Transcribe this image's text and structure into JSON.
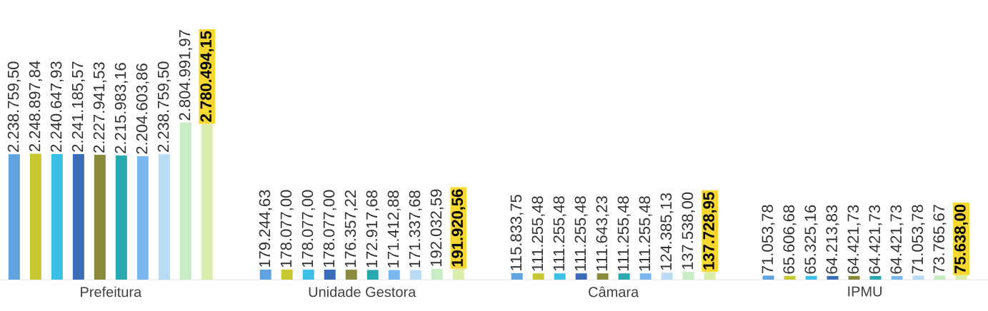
{
  "chart_data": {
    "type": "bar",
    "categories": [
      "Prefeitura",
      "Unidade Gestora",
      "Câmara",
      "IPMU"
    ],
    "tick_labels": "x",
    "series": [
      {
        "color": "#5fa3e0",
        "values": [
          2238759.5,
          179244.63,
          115833.75,
          71053.78
        ],
        "value_labels": [
          "2.238.759,50",
          "179.244,63",
          "115.833,75",
          "71.053,78"
        ]
      },
      {
        "color": "#c8c832",
        "values": [
          2248897.84,
          178077.0,
          111255.48,
          65606.68
        ],
        "value_labels": [
          "2.248.897,84",
          "178.077,00",
          "111.255,48",
          "65.606,68"
        ]
      },
      {
        "color": "#3cc0e6",
        "values": [
          2240647.93,
          178077.0,
          111255.48,
          65325.16
        ],
        "value_labels": [
          "2.240.647,93",
          "178.077,00",
          "111.255,48",
          "65.325,16"
        ]
      },
      {
        "color": "#3a6cb8",
        "values": [
          2241185.57,
          178077.0,
          111255.48,
          64213.83
        ],
        "value_labels": [
          "2.241.185,57",
          "178.077,00",
          "111.255,48",
          "64.213,83"
        ]
      },
      {
        "color": "#8a8a3c",
        "values": [
          2227941.53,
          176357.22,
          111643.23,
          64421.73
        ],
        "value_labels": [
          "2.227.941,53",
          "176.357,22",
          "111.643,23",
          "64.421,73"
        ]
      },
      {
        "color": "#2aa8b0",
        "values": [
          2215983.16,
          172917.68,
          111255.48,
          64421.73
        ],
        "value_labels": [
          "2.215.983,16",
          "172.917,68",
          "111.255,48",
          "64.421,73"
        ]
      },
      {
        "color": "#7ab8ef",
        "values": [
          2204603.86,
          171412.88,
          111255.48,
          64421.73
        ],
        "value_labels": [
          "2.204.603,86",
          "171.412,88",
          "111.255,48",
          "64.421,73"
        ]
      },
      {
        "color": "#b8dcf6",
        "values": [
          2238759.5,
          171337.68,
          124385.13,
          71053.78
        ],
        "value_labels": [
          "2.238.759,50",
          "171.337,68",
          "124.385,13",
          "71.053,78"
        ]
      },
      {
        "color": "#c8ecc4",
        "values": [
          2804991.97,
          192032.59,
          137538.0,
          73765.67
        ],
        "value_labels": [
          "2.804.991,97",
          "192.032,59",
          "137.538,00",
          "73.765,67"
        ]
      },
      {
        "color": "#dcecaa",
        "values": [
          2780494.15,
          191920.56,
          137728.95,
          75638.0
        ],
        "value_labels": [
          "2.780.494,15",
          "191.920,56",
          "137.728,95",
          "75.638,00"
        ]
      }
    ]
  }
}
